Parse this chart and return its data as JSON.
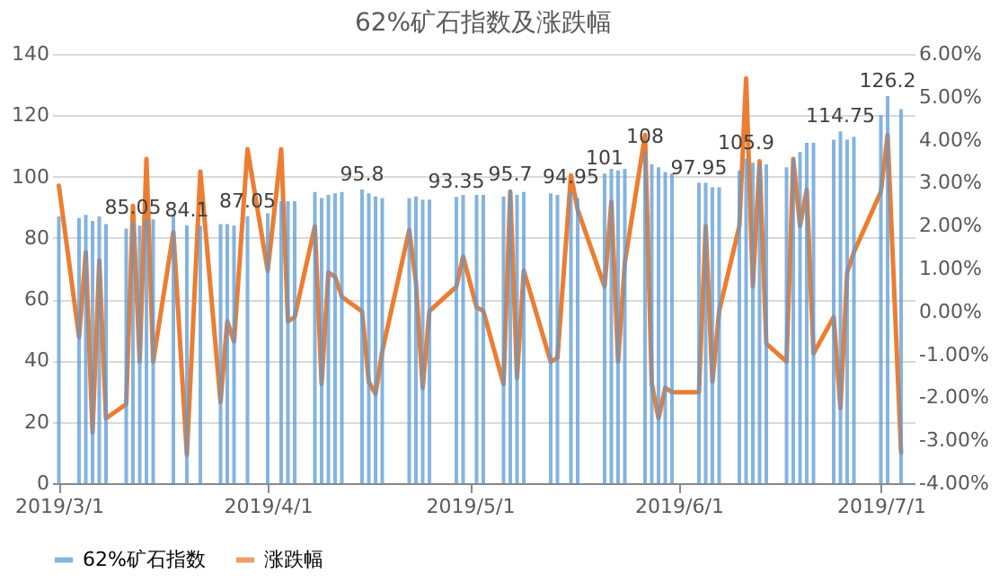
{
  "chart_data": {
    "type": "bar",
    "title": "62%矿石指数及涨跌幅",
    "x": [
      "2019-03-01",
      "2019-03-04",
      "2019-03-05",
      "2019-03-06",
      "2019-03-07",
      "2019-03-08",
      "2019-03-11",
      "2019-03-12",
      "2019-03-13",
      "2019-03-14",
      "2019-03-15",
      "2019-03-18",
      "2019-03-20",
      "2019-03-22",
      "2019-03-25",
      "2019-03-26",
      "2019-03-27",
      "2019-03-29",
      "2019-04-01",
      "2019-04-03",
      "2019-04-04",
      "2019-04-05",
      "2019-04-08",
      "2019-04-09",
      "2019-04-10",
      "2019-04-11",
      "2019-04-12",
      "2019-04-15",
      "2019-04-16",
      "2019-04-17",
      "2019-04-18",
      "2019-04-22",
      "2019-04-23",
      "2019-04-24",
      "2019-04-25",
      "2019-04-29",
      "2019-04-30",
      "2019-05-02",
      "2019-05-03",
      "2019-05-06",
      "2019-05-07",
      "2019-05-08",
      "2019-05-09",
      "2019-05-13",
      "2019-05-14",
      "2019-05-16",
      "2019-05-17",
      "2019-05-21",
      "2019-05-22",
      "2019-05-23",
      "2019-05-24",
      "2019-05-27",
      "2019-05-28",
      "2019-05-29",
      "2019-05-30",
      "2019-05-31",
      "2019-06-04",
      "2019-06-05",
      "2019-06-06",
      "2019-06-07",
      "2019-06-10",
      "2019-06-11",
      "2019-06-12",
      "2019-06-13",
      "2019-06-14",
      "2019-06-17",
      "2019-06-18",
      "2019-06-19",
      "2019-06-20",
      "2019-06-21",
      "2019-06-24",
      "2019-06-25",
      "2019-06-26",
      "2019-06-27",
      "2019-07-01",
      "2019-07-02",
      "2019-07-04"
    ],
    "series": [
      {
        "name": "62%矿石指数",
        "color": "#5b9bd5",
        "values": [
          87,
          86.5,
          87.5,
          85.5,
          87,
          84.5,
          83,
          85.05,
          84,
          86,
          86,
          87.5,
          84.1,
          84,
          84.5,
          84.5,
          84,
          87.05,
          88,
          92,
          92,
          92,
          95,
          93,
          94,
          94.5,
          95,
          95.8,
          94.5,
          93.5,
          93,
          93,
          93.5,
          92.5,
          92.5,
          93.35,
          94,
          94,
          94,
          93.5,
          95.7,
          94,
          95,
          94.5,
          94,
          94.95,
          93,
          101,
          102.5,
          102,
          102.5,
          108,
          104,
          103,
          101.5,
          101,
          97.95,
          98,
          96.5,
          96.5,
          102,
          105.9,
          104.5,
          104,
          104,
          103,
          106,
          108,
          111,
          111,
          112,
          114.75,
          112,
          113,
          120,
          126.2,
          122
        ],
        "value_labels": [
          null,
          null,
          null,
          null,
          null,
          null,
          null,
          "85.05",
          null,
          null,
          null,
          null,
          "84.1",
          null,
          null,
          null,
          null,
          "87.05",
          null,
          null,
          null,
          null,
          null,
          null,
          null,
          null,
          null,
          "95.8",
          null,
          null,
          null,
          null,
          null,
          null,
          null,
          "93.35",
          null,
          null,
          null,
          null,
          "95.7",
          null,
          null,
          null,
          null,
          "94.95",
          null,
          "101",
          null,
          null,
          null,
          "108",
          null,
          null,
          null,
          null,
          "97.95",
          null,
          null,
          null,
          null,
          "105.9",
          null,
          null,
          null,
          null,
          null,
          null,
          null,
          null,
          null,
          "114.75",
          null,
          null,
          null,
          "126.2",
          null
        ]
      },
      {
        "name": "涨跌幅",
        "type": "line",
        "axis": "y2",
        "color": "#ed7d31",
        "values": [
          2.93,
          -0.6,
          1.38,
          -2.82,
          1.19,
          -2.49,
          -2.16,
          2.46,
          -1.17,
          3.55,
          -1.17,
          1.85,
          -3.34,
          3.26,
          -2.11,
          -0.23,
          -0.7,
          3.78,
          0.95,
          3.78,
          -0.23,
          -0.13,
          1.99,
          -1.69,
          0.91,
          0.81,
          0.34,
          0.0,
          -1.64,
          -1.92,
          -0.93,
          1.9,
          0.67,
          -1.78,
          0.01,
          0.58,
          1.28,
          0.1,
          0.01,
          -1.69,
          2.79,
          -1.55,
          0.95,
          -1.17,
          -1.08,
          3.17,
          2.37,
          0.58,
          2.56,
          -1.17,
          1.14,
          4.11,
          -1.69,
          -2.49,
          -1.78,
          -1.88,
          -1.88,
          1.99,
          -1.64,
          0.01,
          1.99,
          5.43,
          0.58,
          3.5,
          -0.75,
          -1.17,
          3.55,
          1.99,
          2.84,
          -0.98,
          -0.13,
          -2.25,
          0.91,
          1.38,
          2.79,
          4.11,
          -3.29
        ]
      }
    ],
    "xlim": [
      "2019-02-28",
      "2019-07-06"
    ],
    "xticks": [
      {
        "value": "2019-03-01",
        "label": "2019/3/1"
      },
      {
        "value": "2019-04-01",
        "label": "2019/4/1"
      },
      {
        "value": "2019-05-01",
        "label": "2019/5/1"
      },
      {
        "value": "2019-06-01",
        "label": "2019/6/1"
      },
      {
        "value": "2019-07-01",
        "label": "2019/7/1"
      }
    ],
    "ylim": [
      0,
      140
    ],
    "yticks": [
      0,
      20,
      40,
      60,
      80,
      100,
      120,
      140
    ],
    "y2lim": [
      -4,
      6
    ],
    "y2ticks": [
      {
        "value": -4,
        "label": "-4.00%"
      },
      {
        "value": -3,
        "label": "-3.00%"
      },
      {
        "value": -2,
        "label": "-2.00%"
      },
      {
        "value": -1,
        "label": "-1.00%"
      },
      {
        "value": 0,
        "label": "0.00%"
      },
      {
        "value": 1,
        "label": "1.00%"
      },
      {
        "value": 2,
        "label": "2.00%"
      },
      {
        "value": 3,
        "label": "3.00%"
      },
      {
        "value": 4,
        "label": "4.00%"
      },
      {
        "value": 5,
        "label": "5.00%"
      },
      {
        "value": 6,
        "label": "6.00%"
      }
    ],
    "grid": "y",
    "legend": "bottom"
  }
}
